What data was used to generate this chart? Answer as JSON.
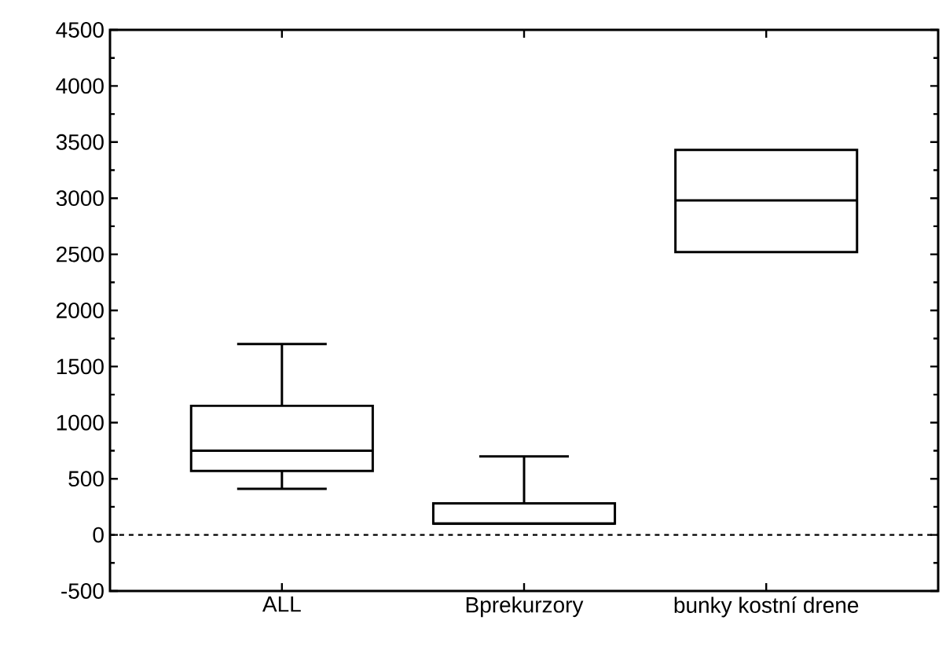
{
  "chart_data": {
    "type": "box",
    "categories": [
      "ALL",
      "Bprekurzory",
      "bunky kostní drene"
    ],
    "boxes": [
      {
        "low": 410,
        "q1": 570,
        "median": 750,
        "q3": 1150,
        "high": 1700
      },
      {
        "low": 100,
        "q1": 100,
        "median": 100,
        "q3": 280,
        "high": 700
      },
      {
        "low": 2520,
        "q1": 2520,
        "median": 2980,
        "q3": 3430,
        "high": 3430
      }
    ],
    "color": "#000000",
    "ylim": [
      -500,
      4500
    ],
    "yticks": [
      -500,
      0,
      500,
      1000,
      1500,
      2000,
      2500,
      3000,
      3500,
      4000,
      4500
    ],
    "ref_lines": [
      {
        "axis": "y",
        "value": 0,
        "line_style": "dashed",
        "color": "#000000"
      }
    ],
    "grid": false
  }
}
